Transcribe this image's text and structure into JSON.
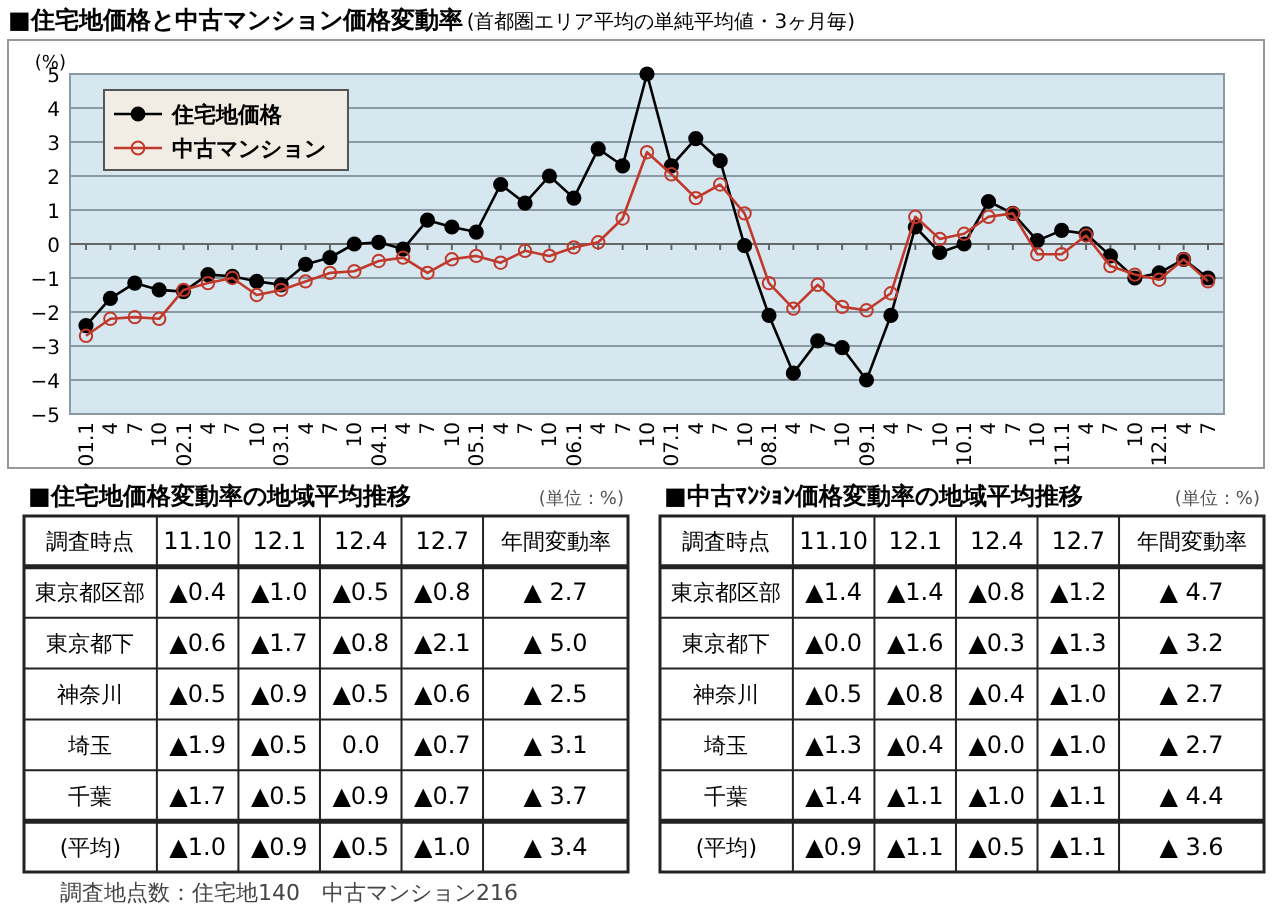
{
  "chart_data": [
    {
      "type": "line",
      "title": "■住宅地価格と中古マンション価格変動率",
      "subtitle": "(首都圏エリア平均の単純平均値・3ヶ月毎)",
      "ylabel": "(%)",
      "categories": [
        "01.1",
        "4",
        "7",
        "10",
        "02.1",
        "4",
        "7",
        "10",
        "03.1",
        "4",
        "7",
        "10",
        "04.1",
        "4",
        "7",
        "10",
        "05.1",
        "4",
        "7",
        "10",
        "06.1",
        "4",
        "7",
        "10",
        "07.1",
        "4",
        "7",
        "10",
        "08.1",
        "4",
        "7",
        "10",
        "09.1",
        "4",
        "7",
        "10",
        "10.1",
        "4",
        "7",
        "10",
        "11.1",
        "4",
        "7",
        "10",
        "12.1",
        "4",
        "7"
      ],
      "series": [
        {
          "name": "住宅地価格",
          "color": "#000000",
          "values": [
            -2.4,
            -1.6,
            -1.15,
            -1.35,
            -1.4,
            -0.9,
            -0.95,
            -1.1,
            -1.2,
            -0.6,
            -0.4,
            0.0,
            0.05,
            -0.15,
            0.7,
            0.5,
            0.35,
            1.75,
            1.2,
            2.0,
            1.35,
            2.8,
            2.3,
            5.0,
            2.3,
            3.1,
            2.45,
            -0.05,
            -2.1,
            -3.8,
            -2.85,
            -3.05,
            -4.0,
            -2.1,
            0.5,
            -0.25,
            0.0,
            1.25,
            0.9,
            0.1,
            0.4,
            0.3,
            -0.35,
            -1.0,
            -0.85,
            -0.45,
            -1.0
          ]
        },
        {
          "name": "中古マンション",
          "color": "#c0392b",
          "values": [
            -2.7,
            -2.2,
            -2.15,
            -2.2,
            -1.35,
            -1.15,
            -1.0,
            -1.5,
            -1.35,
            -1.1,
            -0.85,
            -0.8,
            -0.5,
            -0.4,
            -0.85,
            -0.45,
            -0.35,
            -0.55,
            -0.2,
            -0.35,
            -0.1,
            0.05,
            0.75,
            2.7,
            2.05,
            1.35,
            1.75,
            0.9,
            -1.15,
            -1.9,
            -1.2,
            -1.85,
            -1.95,
            -1.45,
            0.8,
            0.15,
            0.3,
            0.8,
            0.9,
            -0.3,
            -0.3,
            0.25,
            -0.65,
            -0.9,
            -1.05,
            -0.45,
            -1.1
          ]
        }
      ],
      "ylim": [
        -5,
        5
      ],
      "yticks": [
        -5,
        -4,
        -3,
        -2,
        -1,
        0,
        1,
        2,
        3,
        4,
        5
      ],
      "grid": "y",
      "legend": "top left",
      "marker": "circle",
      "line_style": "solid"
    },
    {
      "type": "other",
      "title": "■住宅地価格変動率の地域平均推移",
      "subtitle": "(単位：%)",
      "categories": [
        "調査時点",
        "11.10",
        "12.1",
        "12.4",
        "12.7",
        "年間変動率"
      ],
      "y_categories": [
        "東京都区部",
        "東京都下",
        "神奈川",
        "埼玉",
        "千葉",
        "(平均)"
      ],
      "cell_labels": [
        [
          "▲0.4",
          "▲1.0",
          "▲0.5",
          "▲0.8",
          "▲ 2.7"
        ],
        [
          "▲0.6",
          "▲1.7",
          "▲0.8",
          "▲2.1",
          "▲ 5.0"
        ],
        [
          "▲0.5",
          "▲0.9",
          "▲0.5",
          "▲0.6",
          "▲ 2.5"
        ],
        [
          "▲1.9",
          "▲0.5",
          "0.0",
          "▲0.7",
          "▲ 3.1"
        ],
        [
          "▲1.7",
          "▲0.5",
          "▲0.9",
          "▲0.7",
          "▲ 3.7"
        ],
        [
          "▲1.0",
          "▲0.9",
          "▲0.5",
          "▲1.0",
          "▲ 3.4"
        ]
      ],
      "annotations": [
        "調査地点数：住宅地140　中古マンション216"
      ]
    },
    {
      "type": "other",
      "title": "■中古ﾏﾝｼｮﾝ価格変動率の地域平均推移",
      "subtitle": "(単位：%)",
      "categories": [
        "調査時点",
        "11.10",
        "12.1",
        "12.4",
        "12.7",
        "年間変動率"
      ],
      "y_categories": [
        "東京都区部",
        "東京都下",
        "神奈川",
        "埼玉",
        "千葉",
        "(平均)"
      ],
      "cell_labels": [
        [
          "▲1.4",
          "▲1.4",
          "▲0.8",
          "▲1.2",
          "▲ 4.7"
        ],
        [
          "▲0.0",
          "▲1.6",
          "▲0.3",
          "▲1.3",
          "▲ 3.2"
        ],
        [
          "▲0.5",
          "▲0.8",
          "▲0.4",
          "▲1.0",
          "▲ 2.7"
        ],
        [
          "▲1.3",
          "▲0.4",
          "▲0.0",
          "▲1.0",
          "▲ 2.7"
        ],
        [
          "▲1.4",
          "▲1.1",
          "▲1.0",
          "▲1.1",
          "▲ 4.4"
        ],
        [
          "▲0.9",
          "▲1.1",
          "▲0.5",
          "▲1.1",
          "▲ 3.6"
        ]
      ]
    }
  ]
}
